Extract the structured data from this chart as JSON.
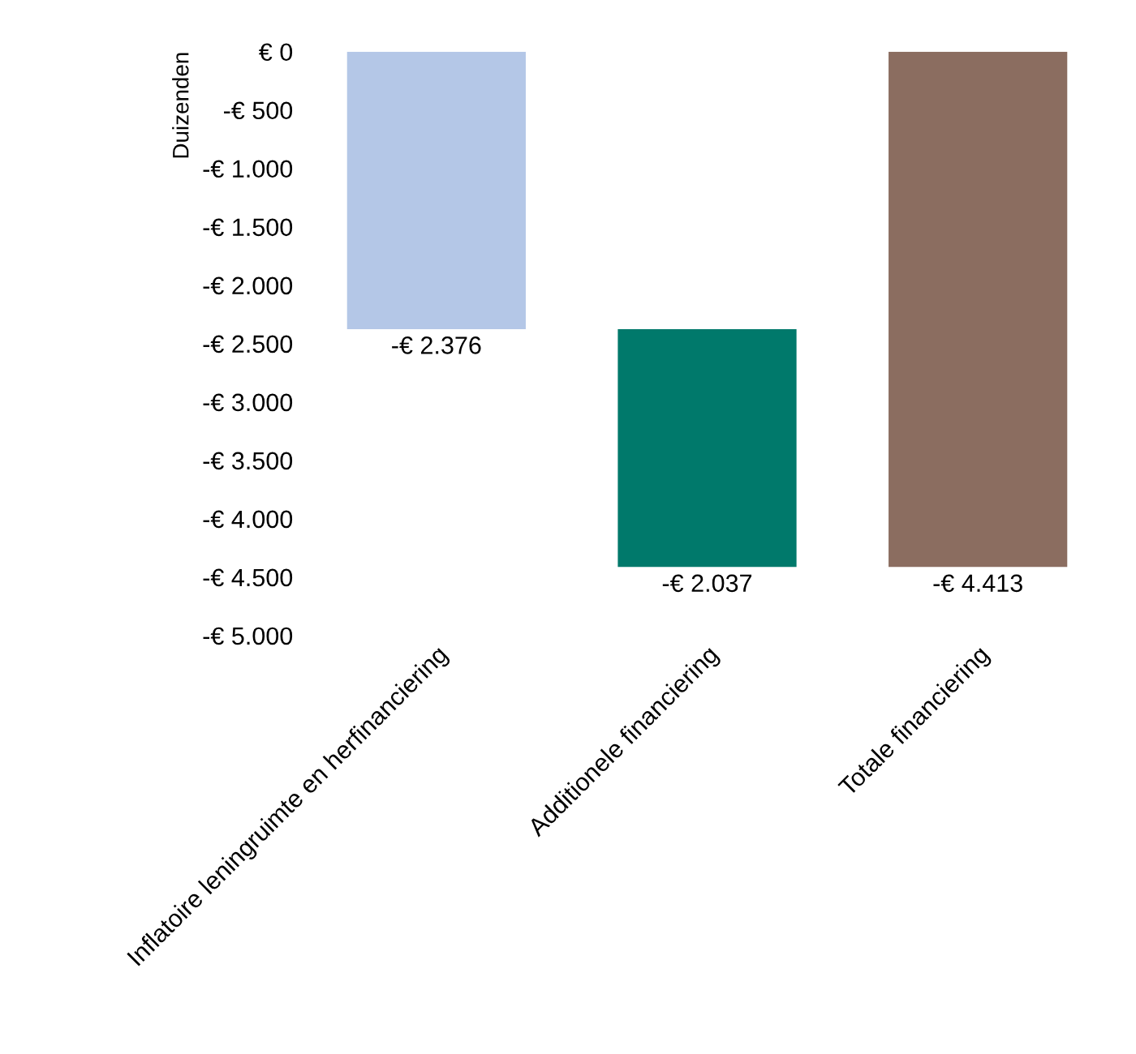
{
  "chart_data": {
    "type": "bar",
    "ylabel": "Duizenden",
    "categories": [
      "Inflatoire leningruimte en herfinanciering",
      "Additionele financiering",
      "Totale financiering"
    ],
    "values": [
      -2376,
      -2037,
      -4413
    ],
    "base": [
      0,
      -2376,
      0
    ],
    "colors": [
      "#b4c7e7",
      "#00796b",
      "#8b6d60"
    ],
    "value_labels": [
      "-€ 2.376",
      "-€ 2.037",
      "-€ 4.413"
    ],
    "ylim": [
      -5000,
      0
    ],
    "yticks": [
      {
        "value": 0,
        "label": "€ 0"
      },
      {
        "value": -500,
        "label": "-€ 500"
      },
      {
        "value": -1000,
        "label": "-€ 1.000"
      },
      {
        "value": -1500,
        "label": "-€ 1.500"
      },
      {
        "value": -2000,
        "label": "-€ 2.000"
      },
      {
        "value": -2500,
        "label": "-€ 2.500"
      },
      {
        "value": -3000,
        "label": "-€ 3.000"
      },
      {
        "value": -3500,
        "label": "-€ 3.500"
      },
      {
        "value": -4000,
        "label": "-€ 4.000"
      },
      {
        "value": -4500,
        "label": "-€ 4.500"
      },
      {
        "value": -5000,
        "label": "-€ 5.000"
      }
    ],
    "grid": false,
    "legend": false
  }
}
